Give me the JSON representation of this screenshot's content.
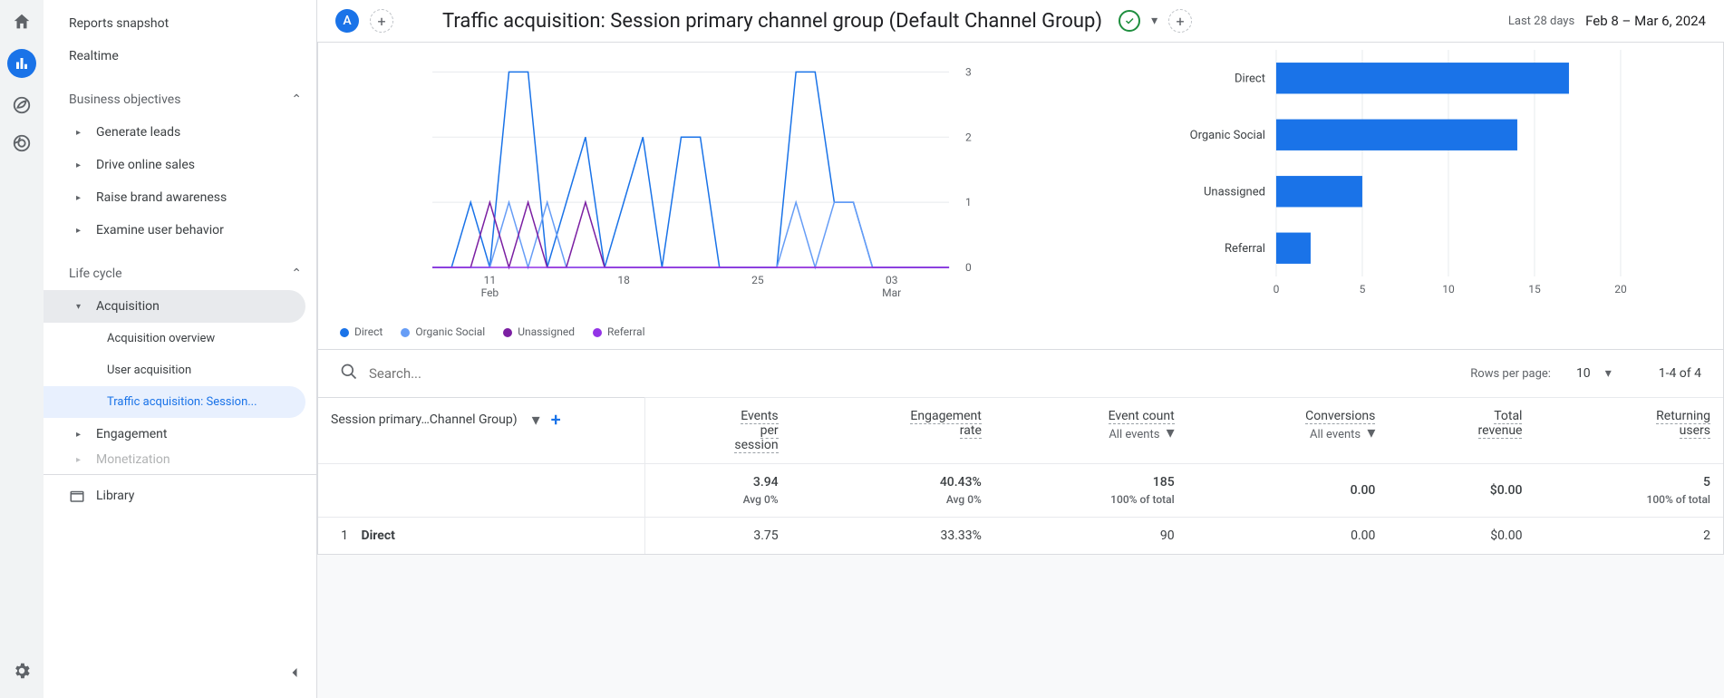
{
  "sidebar": {
    "reports_snapshot": "Reports snapshot",
    "realtime": "Realtime",
    "business_objectives": "Business objectives",
    "generate_leads": "Generate leads",
    "drive_online_sales": "Drive online sales",
    "raise_brand_awareness": "Raise brand awareness",
    "examine_user_behavior": "Examine user behavior",
    "life_cycle": "Life cycle",
    "acquisition": "Acquisition",
    "acquisition_overview": "Acquisition overview",
    "user_acquisition": "User acquisition",
    "traffic_acquisition": "Traffic acquisition: Session...",
    "engagement": "Engagement",
    "monetization": "Monetization",
    "library": "Library"
  },
  "header": {
    "badge": "A",
    "title": "Traffic acquisition: Session primary channel group (Default Channel Group)",
    "date_label": "Last 28 days",
    "date_range": "Feb 8 – Mar 6, 2024"
  },
  "line_chart": {
    "ylim": [
      0,
      3.2
    ],
    "yticks": [
      0,
      1,
      2,
      3
    ],
    "x_dates": [
      "2024-02-08",
      "2024-02-09",
      "2024-02-10",
      "2024-02-11",
      "2024-02-12",
      "2024-02-13",
      "2024-02-14",
      "2024-02-15",
      "2024-02-16",
      "2024-02-17",
      "2024-02-18",
      "2024-02-19",
      "2024-02-20",
      "2024-02-21",
      "2024-02-22",
      "2024-02-23",
      "2024-02-24",
      "2024-02-25",
      "2024-02-26",
      "2024-02-27",
      "2024-02-28",
      "2024-02-29",
      "2024-03-01",
      "2024-03-02",
      "2024-03-03",
      "2024-03-04",
      "2024-03-05",
      "2024-03-06"
    ],
    "xticks": [
      {
        "idx": 3,
        "label_top": "11",
        "label_bottom": "Feb"
      },
      {
        "idx": 10,
        "label_top": "18",
        "label_bottom": ""
      },
      {
        "idx": 17,
        "label_top": "25",
        "label_bottom": ""
      },
      {
        "idx": 24,
        "label_top": "03",
        "label_bottom": "Mar"
      }
    ],
    "series": [
      {
        "name": "Direct",
        "color": "#1a73e8",
        "values": [
          0,
          0,
          1,
          0,
          3,
          3,
          0,
          1,
          2,
          0,
          1,
          2,
          0,
          2,
          2,
          0,
          0,
          0,
          0,
          3,
          3,
          1,
          1,
          0,
          0,
          0,
          0,
          0
        ]
      },
      {
        "name": "Organic Social",
        "color": "#669df6",
        "values": [
          0,
          0,
          0,
          0,
          1,
          0,
          1,
          0,
          0,
          0,
          0,
          0,
          0,
          0,
          0,
          0,
          0,
          0,
          0,
          1,
          0,
          1,
          1,
          0,
          0,
          0,
          0,
          0
        ]
      },
      {
        "name": "Unassigned",
        "color": "#7b1fa2",
        "values": [
          0,
          0,
          0,
          1,
          0,
          1,
          0,
          0,
          1,
          0,
          0,
          0,
          0,
          0,
          0,
          0,
          0,
          0,
          0,
          0,
          0,
          0,
          0,
          0,
          0,
          0,
          0,
          0
        ]
      },
      {
        "name": "Referral",
        "color": "#9334e6",
        "values": [
          0,
          0,
          0,
          0,
          0,
          0,
          0,
          0,
          0,
          0,
          0,
          0,
          0,
          0,
          0,
          0,
          0,
          0,
          0,
          0,
          0,
          0,
          0,
          0,
          0,
          0,
          0,
          0
        ]
      }
    ],
    "grid_color": "#e8eaed",
    "axis_text_color": "#5f6368",
    "background": "#ffffff"
  },
  "bar_chart": {
    "xlim": [
      0,
      20
    ],
    "xticks": [
      0,
      5,
      10,
      15,
      20
    ],
    "categories": [
      "Direct",
      "Organic Social",
      "Unassigned",
      "Referral"
    ],
    "values": [
      17,
      14,
      5,
      2
    ],
    "bar_color": "#1a73e8",
    "grid_color": "#e8eaed",
    "axis_text_color": "#5f6368",
    "background": "#ffffff"
  },
  "legend": [
    {
      "label": "Direct",
      "color": "#1a73e8"
    },
    {
      "label": "Organic Social",
      "color": "#669df6"
    },
    {
      "label": "Unassigned",
      "color": "#7b1fa2"
    },
    {
      "label": "Referral",
      "color": "#9334e6"
    }
  ],
  "table_toolbar": {
    "search_placeholder": "Search...",
    "rows_label": "Rows per page:",
    "rows_value": "10",
    "page_info": "1-4 of 4"
  },
  "table": {
    "dimension_header": "Session primary…Channel Group)",
    "columns": [
      {
        "l1": "Events",
        "l2": "per",
        "l3": "session",
        "dropdown": ""
      },
      {
        "l1": "Engagement",
        "l2": "rate",
        "l3": "",
        "dropdown": ""
      },
      {
        "l1": "Event count",
        "l2": "",
        "l3": "",
        "dropdown": "All events"
      },
      {
        "l1": "Conversions",
        "l2": "",
        "l3": "",
        "dropdown": "All events"
      },
      {
        "l1": "Total",
        "l2": "revenue",
        "l3": "",
        "dropdown": ""
      },
      {
        "l1": "Returning",
        "l2": "users",
        "l3": "",
        "dropdown": ""
      }
    ],
    "summary": {
      "values": [
        "3.94",
        "40.43%",
        "185",
        "0.00",
        "$0.00",
        "5"
      ],
      "subs": [
        "Avg 0%",
        "Avg 0%",
        "100% of total",
        "",
        "",
        "100% of total"
      ]
    },
    "rows": [
      {
        "n": 1,
        "dim": "Direct",
        "values": [
          "3.75",
          "33.33%",
          "90",
          "0.00",
          "$0.00",
          "2"
        ]
      }
    ]
  }
}
